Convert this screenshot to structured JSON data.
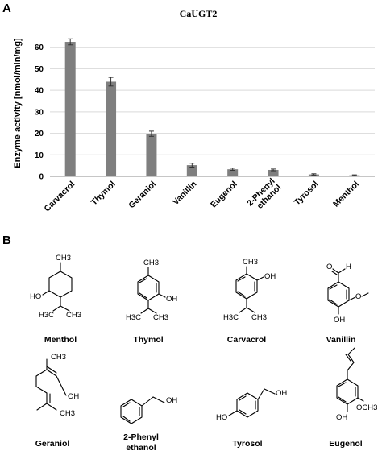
{
  "panels": {
    "a": "A",
    "b": "B"
  },
  "chart_data": {
    "type": "bar",
    "title": "CaUGT2",
    "xlabel": "",
    "ylabel": "Enzyme activity [nmol/min/mg]",
    "ylim": [
      0,
      70
    ],
    "yticks": [
      0,
      10,
      20,
      30,
      40,
      50,
      60
    ],
    "grid": "horizontal",
    "bar_color": "#7f7f7f",
    "categories": [
      "Carvacrol",
      "Thymol",
      "Geraniol",
      "Vanillin",
      "Eugenol",
      "2-Phenyl ethanol",
      "Tyrosol",
      "Menthol"
    ],
    "category_lines": [
      [
        "Carvacrol"
      ],
      [
        "Thymol"
      ],
      [
        "Geraniol"
      ],
      [
        "Vanillin"
      ],
      [
        "Eugenol"
      ],
      [
        "2-Phenyl",
        "ethanol"
      ],
      [
        "Tyrosol"
      ],
      [
        "Menthol"
      ]
    ],
    "values": [
      62.5,
      44.0,
      19.8,
      5.2,
      3.3,
      3.0,
      0.9,
      0.5
    ],
    "errors": [
      1.4,
      2.0,
      1.2,
      0.9,
      0.5,
      0.4,
      0.3,
      0.2
    ]
  },
  "structures": [
    {
      "name_lines": [
        "Menthol"
      ],
      "labels": {
        "ch3": "CH3",
        "oh": "HO",
        "h3c": "H3C",
        "ch3b": "CH3"
      }
    },
    {
      "name_lines": [
        "Thymol"
      ],
      "labels": {
        "ch3": "CH3",
        "oh": "OH",
        "h3c": "H3C",
        "ch3b": "CH3"
      }
    },
    {
      "name_lines": [
        "Carvacrol"
      ],
      "labels": {
        "ch3": "CH3",
        "oh": "OH",
        "h3c": "H3C",
        "ch3b": "CH3"
      }
    },
    {
      "name_lines": [
        "Vanillin"
      ],
      "labels": {
        "o": "O",
        "h": "H",
        "o2": "O",
        "oh": "OH"
      }
    },
    {
      "name_lines": [
        "Geraniol"
      ],
      "labels": {
        "ch3": "CH3",
        "oh": "OH",
        "ch3b": "CH3"
      }
    },
    {
      "name_lines": [
        "2-Phenyl",
        "ethanol"
      ],
      "labels": {
        "oh": "OH"
      }
    },
    {
      "name_lines": [
        "Tyrosol"
      ],
      "labels": {
        "oh": "OH",
        "ho": "HO"
      }
    },
    {
      "name_lines": [
        "Eugenol"
      ],
      "labels": {
        "oh": "OH",
        "och3": "OCH3"
      }
    }
  ]
}
